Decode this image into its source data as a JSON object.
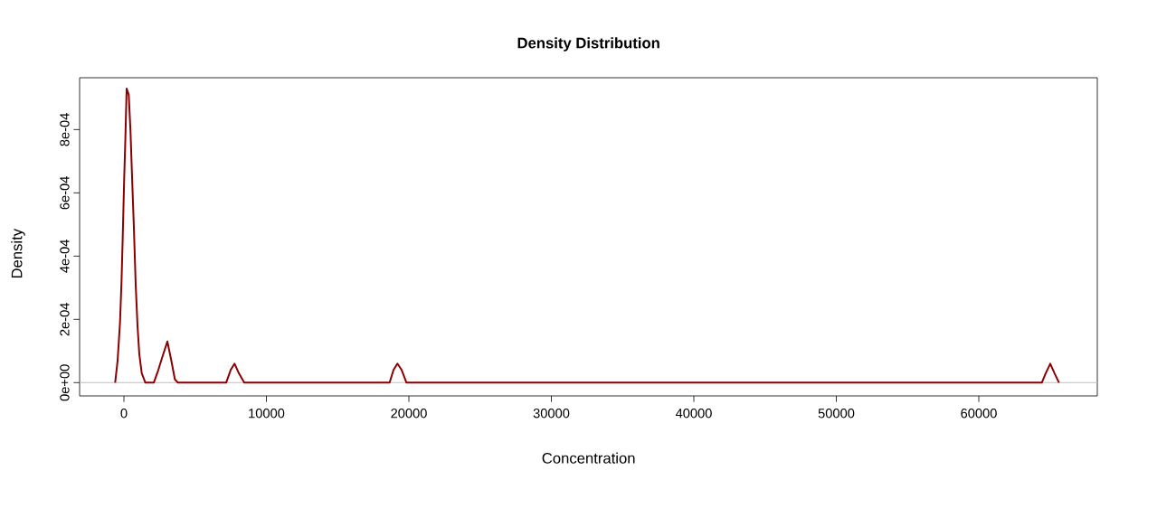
{
  "chart_data": {
    "type": "line",
    "title": "Density Distribution",
    "xlabel": "Concentration",
    "ylabel": "Density",
    "x": [
      -616,
      -444,
      -275,
      -169,
      -85,
      21,
      106,
      190,
      338,
      465,
      571,
      698,
      825,
      952,
      1079,
      1249,
      1503,
      2095,
      2413,
      2688,
      3048,
      3323,
      3577,
      3788,
      7175,
      7492,
      7765,
      8063,
      8444,
      18646,
      18921,
      19195,
      19492,
      19830,
      64423,
      64698,
      65016,
      65312,
      65630
    ],
    "series": [
      {
        "color": "#8b0000",
        "values": [
          0,
          7e-05,
          0.00019,
          0.00032,
          0.00046,
          0.00065,
          0.00078,
          0.00093,
          0.00091,
          0.00079,
          0.00065,
          0.00049,
          0.00031,
          0.00018,
          9e-05,
          3e-05,
          0,
          0,
          4e-05,
          8e-05,
          0.00013,
          7e-05,
          1e-05,
          0,
          0,
          4e-05,
          6e-05,
          3e-05,
          0,
          0,
          4e-05,
          6e-05,
          4e-05,
          0,
          0,
          3e-05,
          6e-05,
          3e-05,
          0
        ]
      }
    ],
    "xlim": [
      -3111,
      68317
    ],
    "ylim": [
      -4.2e-05,
      0.000964
    ],
    "xticks": [
      0,
      10000,
      20000,
      30000,
      40000,
      50000,
      60000
    ],
    "yticks": [
      {
        "value": 0,
        "label": "0e+00"
      },
      {
        "value": 0.0002,
        "label": "2e-04"
      },
      {
        "value": 0.0004,
        "label": "4e-04"
      },
      {
        "value": 0.0006,
        "label": "6e-04"
      },
      {
        "value": 0.0008,
        "label": "8e-04"
      }
    ],
    "ref_lines": [
      {
        "axis": "y",
        "value": 0,
        "color": "#bebebe"
      }
    ],
    "marker": "none",
    "line_style": "solid"
  }
}
